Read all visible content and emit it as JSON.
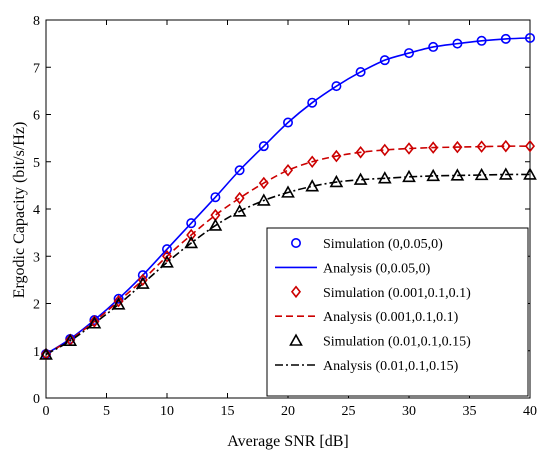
{
  "chart_data": {
    "type": "line",
    "title": "",
    "xlabel": "Average  SNR  [dB]",
    "ylabel": "Ergodic Capacity (bit/s/Hz)",
    "xlim": [
      0,
      40
    ],
    "ylim": [
      0,
      8
    ],
    "xticks": [
      0,
      5,
      10,
      15,
      20,
      25,
      30,
      35,
      40
    ],
    "yticks": [
      0,
      1,
      2,
      3,
      4,
      5,
      6,
      7,
      8
    ],
    "grid": false,
    "legend_position": "bottom-right",
    "x": [
      0,
      2,
      4,
      6,
      8,
      10,
      12,
      14,
      16,
      18,
      20,
      22,
      24,
      26,
      28,
      30,
      32,
      34,
      36,
      38,
      40
    ],
    "series": [
      {
        "name": "Simulation (0,0.05,0)",
        "kind": "markers",
        "marker": "circle",
        "color": "#0000ff",
        "values": [
          0.93,
          1.25,
          1.65,
          2.1,
          2.6,
          3.15,
          3.7,
          4.25,
          4.82,
          5.33,
          5.83,
          6.25,
          6.6,
          6.9,
          7.15,
          7.3,
          7.43,
          7.5,
          7.56,
          7.6,
          7.62
        ]
      },
      {
        "name": "Analysis (0,0.05,0)",
        "kind": "line",
        "linestyle": "solid",
        "color": "#0000ff",
        "values": [
          0.93,
          1.25,
          1.65,
          2.1,
          2.6,
          3.15,
          3.7,
          4.25,
          4.82,
          5.33,
          5.83,
          6.25,
          6.6,
          6.9,
          7.15,
          7.3,
          7.43,
          7.5,
          7.56,
          7.6,
          7.62
        ]
      },
      {
        "name": "Simulation (0.001,0.1,0.1)",
        "kind": "markers",
        "marker": "diamond",
        "color": "#cc0000",
        "values": [
          0.93,
          1.23,
          1.62,
          2.05,
          2.5,
          3.0,
          3.45,
          3.87,
          4.23,
          4.55,
          4.82,
          5.0,
          5.12,
          5.2,
          5.25,
          5.28,
          5.3,
          5.31,
          5.32,
          5.33,
          5.33
        ]
      },
      {
        "name": "Analysis (0.001,0.1,0.1)",
        "kind": "line",
        "linestyle": "dashed",
        "color": "#cc0000",
        "values": [
          0.93,
          1.23,
          1.62,
          2.05,
          2.5,
          3.0,
          3.45,
          3.87,
          4.23,
          4.55,
          4.82,
          5.0,
          5.12,
          5.2,
          5.25,
          5.28,
          5.3,
          5.31,
          5.32,
          5.33,
          5.33
        ]
      },
      {
        "name": "Simulation (0.01,0.1,0.15)",
        "kind": "markers",
        "marker": "triangle",
        "color": "#000000",
        "values": [
          0.92,
          1.21,
          1.58,
          1.98,
          2.42,
          2.87,
          3.28,
          3.65,
          3.95,
          4.18,
          4.35,
          4.48,
          4.57,
          4.62,
          4.65,
          4.68,
          4.7,
          4.71,
          4.72,
          4.73,
          4.73
        ]
      },
      {
        "name": "Analysis (0.01,0.1,0.15)",
        "kind": "line",
        "linestyle": "dashdot",
        "color": "#000000",
        "values": [
          0.92,
          1.21,
          1.58,
          1.98,
          2.42,
          2.87,
          3.28,
          3.65,
          3.95,
          4.18,
          4.35,
          4.48,
          4.57,
          4.62,
          4.65,
          4.68,
          4.7,
          4.71,
          4.72,
          4.73,
          4.73
        ]
      }
    ]
  }
}
